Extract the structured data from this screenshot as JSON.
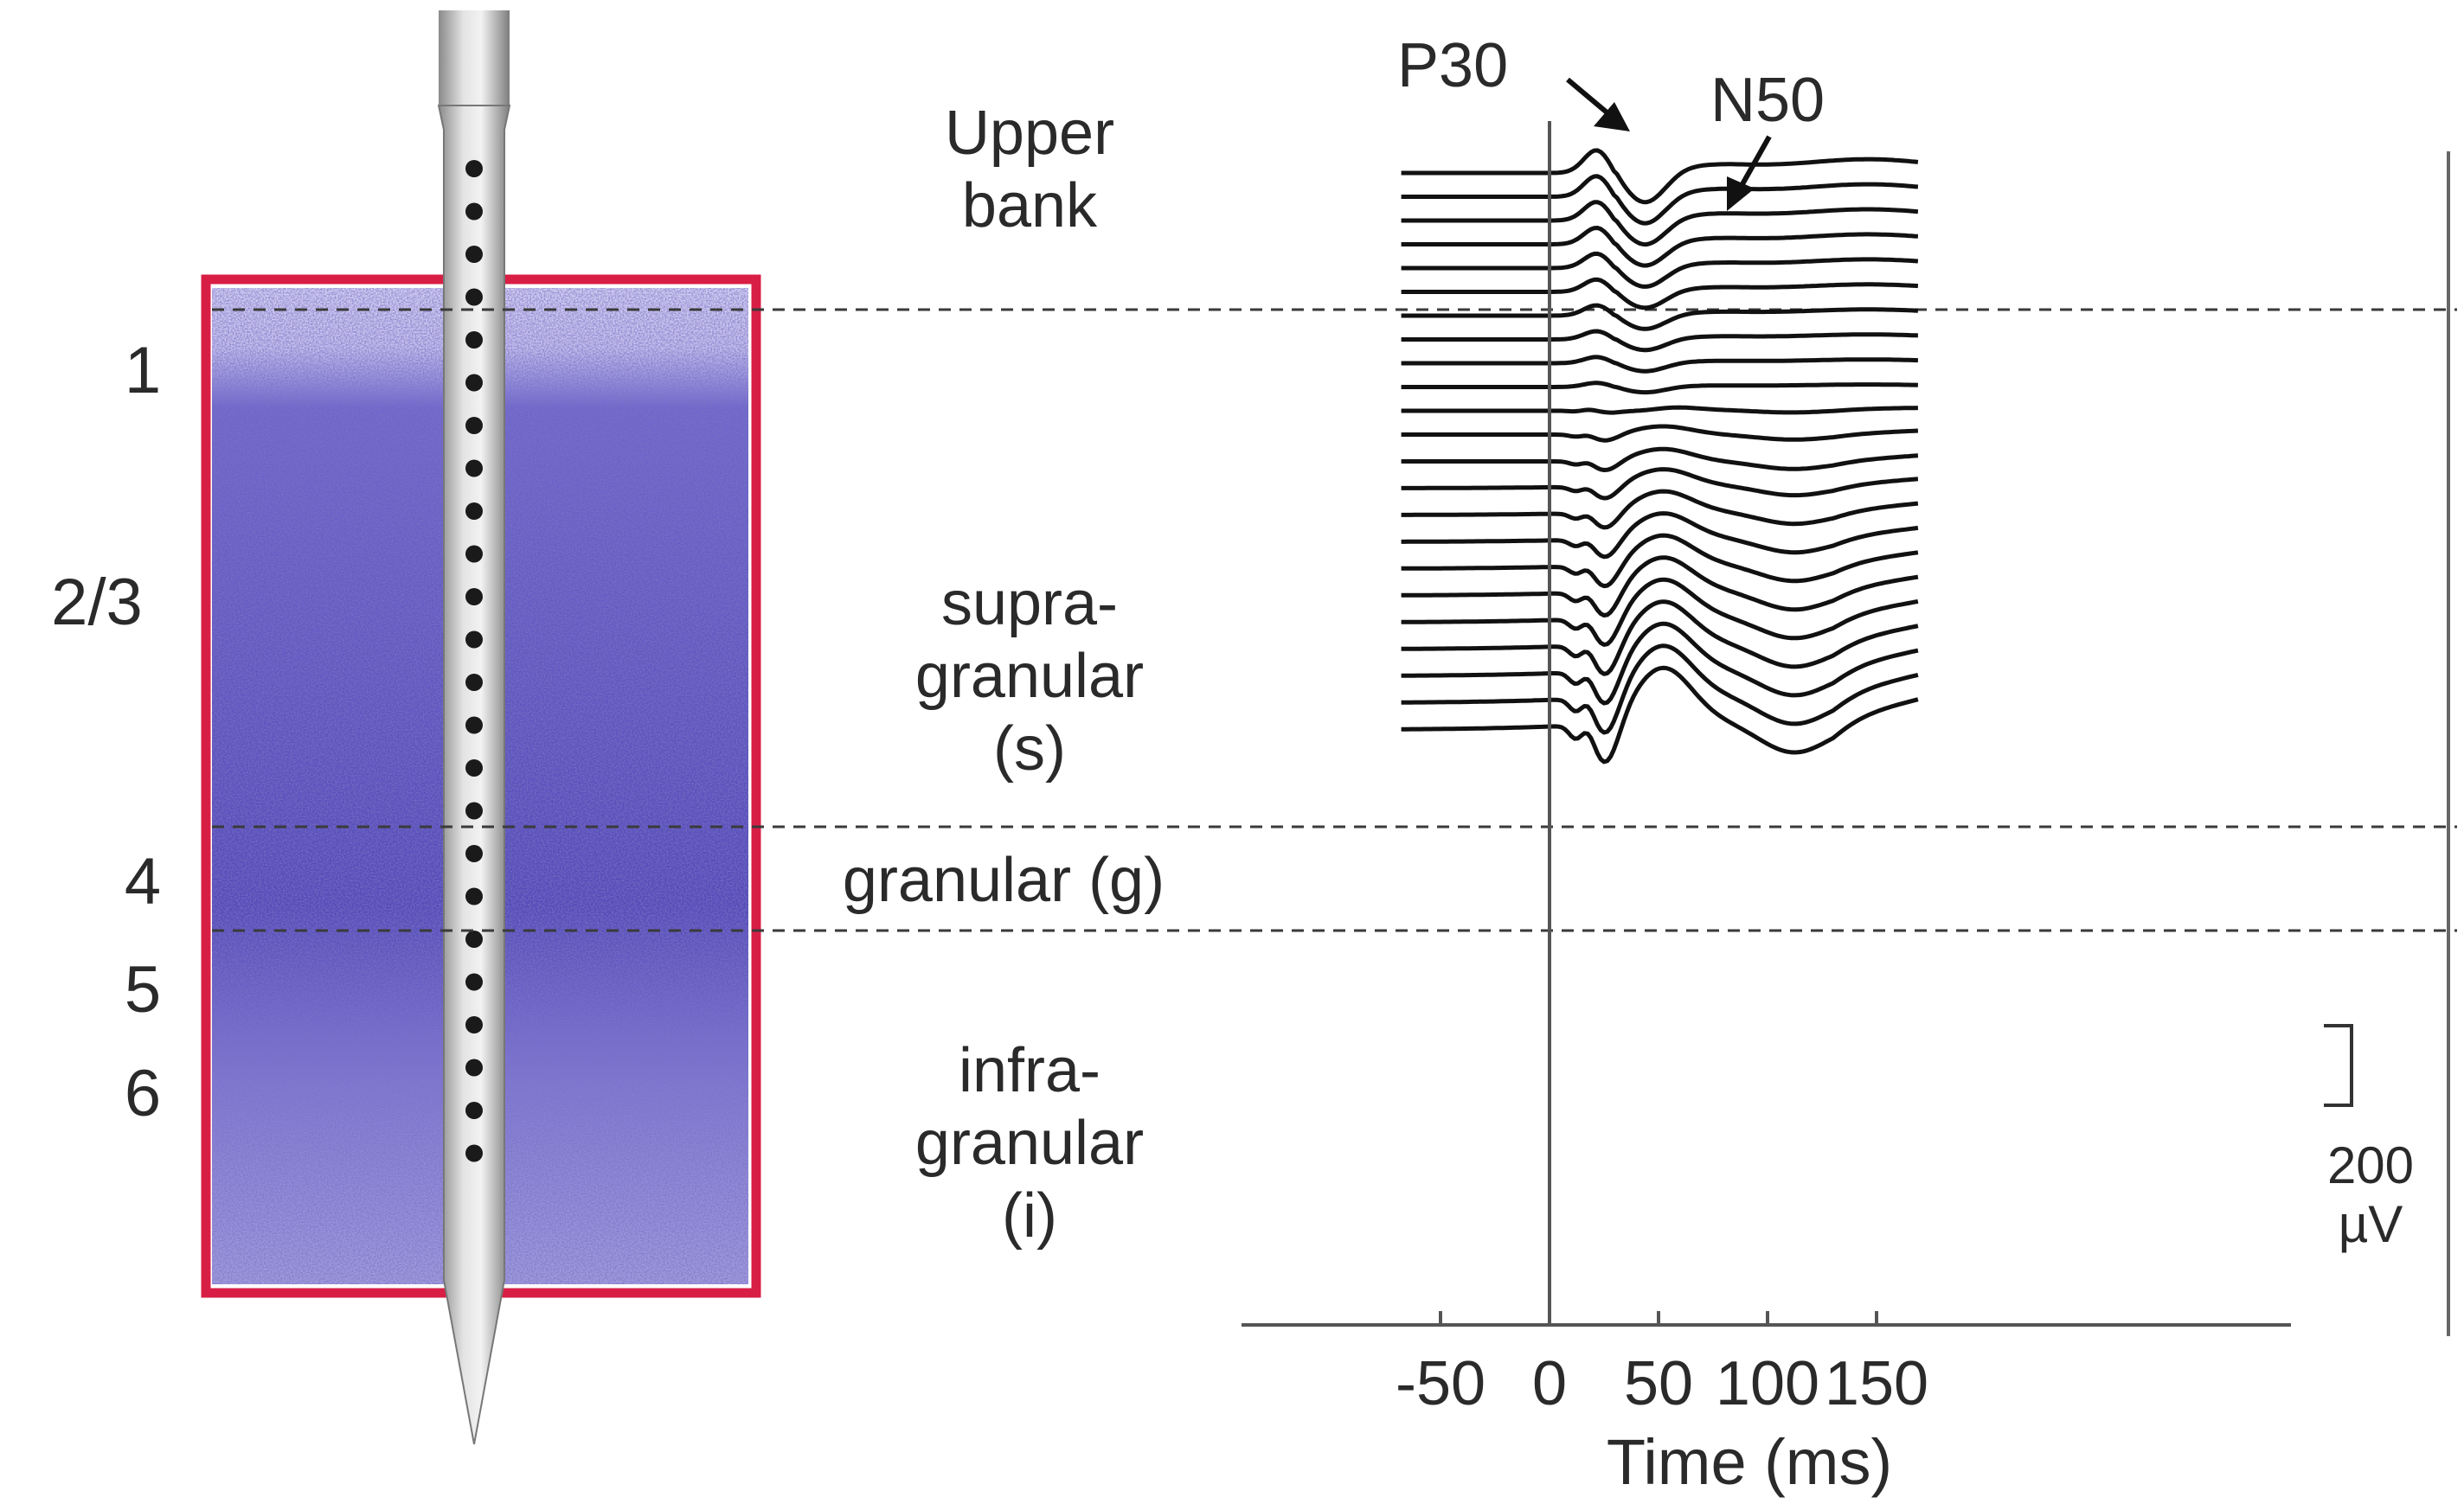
{
  "layers": [
    {
      "id": "layer-1",
      "label": "1"
    },
    {
      "id": "layer-2-3",
      "label": "2/3"
    },
    {
      "id": "layer-4",
      "label": "4"
    },
    {
      "id": "layer-5",
      "label": "5"
    },
    {
      "id": "layer-6",
      "label": "6"
    }
  ],
  "region_labels": {
    "upper_bank": [
      "Upper",
      "bank"
    ],
    "supragranular": [
      "supra-",
      "granular",
      "(s)"
    ],
    "granular": "granular (g)",
    "infragranular": [
      "infra-",
      "granular",
      "(i)"
    ]
  },
  "peaks": {
    "p30": "P30",
    "n50": "N50"
  },
  "scale_bar": {
    "value": "200",
    "unit": "µV"
  },
  "axis": {
    "xlabel": "Time (ms)",
    "ticks": [
      "-50",
      "0",
      "50",
      "100",
      "150"
    ]
  },
  "colors": {
    "frame": "#d81e45",
    "tissue": "#6a62c8",
    "trace": "#111111",
    "probe": "#b8b8b8"
  },
  "chart_data": {
    "type": "line",
    "xlabel": "Time (ms)",
    "xlim": [
      -60,
      170
    ],
    "xticks": [
      -50,
      0,
      50,
      100,
      150
    ],
    "scale_bar": {
      "value": 200,
      "unit": "µV"
    },
    "channel_count": 23,
    "channels_note": "Evoked potentials from 23 equally spaced laminar contacts, top to bottom",
    "peaks": [
      {
        "name": "P30",
        "time_ms": 22
      },
      {
        "name": "N50",
        "time_ms": 44
      }
    ]
  }
}
